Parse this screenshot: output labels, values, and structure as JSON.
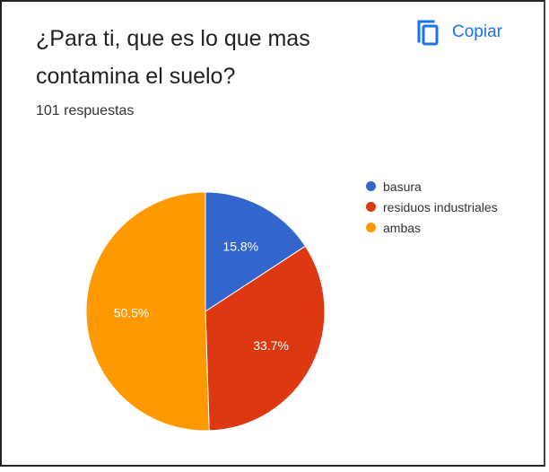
{
  "card": {
    "title": "¿Para ti, que es lo que mas contamina el suelo?",
    "responses": "101 respuestas",
    "copy_label": "Copiar",
    "copy_icon": "copy-icon",
    "accent_color": "#1a73e8"
  },
  "chart_data": {
    "type": "pie",
    "categories": [
      "basura",
      "residuos industriales",
      "ambas"
    ],
    "values": [
      15.8,
      33.7,
      50.5
    ],
    "labels": [
      "15.8%",
      "33.7%",
      "50.5%"
    ],
    "colors": [
      "#3366cc",
      "#dc3912",
      "#ff9900"
    ],
    "legend_position": "right"
  }
}
